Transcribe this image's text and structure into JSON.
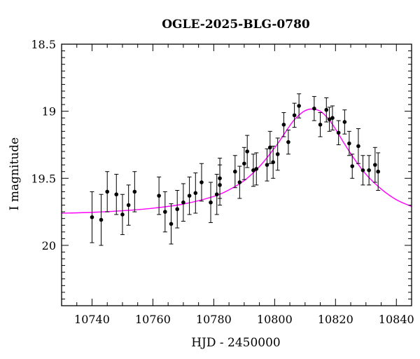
{
  "chart_data": {
    "type": "scatter",
    "title": "OGLE-2025-BLG-0780",
    "xlabel": "HJD - 2450000",
    "ylabel": "I magnitude",
    "xlim": [
      10730,
      10845
    ],
    "ylim": [
      20.45,
      18.5
    ],
    "y_inverted": true,
    "x_ticks": [
      10740,
      10760,
      10780,
      10800,
      10820,
      10840
    ],
    "x_tick_labels": [
      "10740",
      "10760",
      "10780",
      "10800",
      "10820",
      "10840"
    ],
    "y_ticks": [
      18.5,
      19,
      19.5,
      20
    ],
    "y_tick_labels": [
      "18.5",
      "19",
      "19.5",
      "20"
    ],
    "model_color": "#ff00ff",
    "point_color": "#000000",
    "model_curve": {
      "x": [
        10730,
        10740,
        10750,
        10760,
        10770,
        10780,
        10785,
        10790,
        10795,
        10800,
        10803,
        10806,
        10809,
        10811,
        10813,
        10815,
        10817,
        10819,
        10821,
        10823,
        10826,
        10830,
        10835,
        10840,
        10845
      ],
      "y": [
        19.76,
        19.754,
        19.742,
        19.723,
        19.692,
        19.635,
        19.586,
        19.517,
        19.413,
        19.273,
        19.175,
        19.076,
        19.01,
        18.987,
        18.985,
        19.0,
        19.04,
        19.098,
        19.17,
        19.245,
        19.35,
        19.47,
        19.58,
        19.66,
        19.71
      ]
    },
    "series": [
      {
        "x": [
          10740,
          10743,
          10745,
          10748,
          10750,
          10752,
          10754,
          10762,
          10764,
          10766,
          10768,
          10770,
          10772,
          10774,
          10776,
          10779,
          10781,
          10782,
          10782,
          10787,
          10788.5,
          10790,
          10791,
          10793,
          10794,
          10797.5,
          10798.5,
          10799.5,
          10801,
          10803,
          10804.5,
          10806.5,
          10808,
          10813,
          10815,
          10817,
          10818,
          10819,
          10821,
          10823,
          10824.5,
          10825.5,
          10827.5,
          10829,
          10831,
          10833,
          10834
        ],
        "y": [
          19.79,
          19.81,
          19.6,
          19.62,
          19.77,
          19.7,
          19.6,
          19.63,
          19.75,
          19.84,
          19.73,
          19.68,
          19.63,
          19.61,
          19.53,
          19.68,
          19.62,
          19.55,
          19.5,
          19.45,
          19.53,
          19.39,
          19.3,
          19.44,
          19.43,
          19.4,
          19.27,
          19.38,
          19.32,
          19.1,
          19.23,
          19.03,
          18.96,
          18.98,
          19.1,
          18.99,
          19.06,
          19.05,
          19.16,
          19.08,
          19.24,
          19.41,
          19.26,
          19.44,
          19.44,
          19.4,
          19.45
        ],
        "y_err": [
          0.19,
          0.19,
          0.15,
          0.15,
          0.15,
          0.15,
          0.15,
          0.14,
          0.15,
          0.15,
          0.14,
          0.14,
          0.14,
          0.15,
          0.14,
          0.15,
          0.15,
          0.15,
          0.15,
          0.12,
          0.12,
          0.12,
          0.12,
          0.12,
          0.12,
          0.12,
          0.12,
          0.12,
          0.12,
          0.09,
          0.09,
          0.09,
          0.09,
          0.09,
          0.09,
          0.09,
          0.09,
          0.09,
          0.09,
          0.09,
          0.09,
          0.09,
          0.13,
          0.11,
          0.11,
          0.13,
          0.14
        ]
      }
    ]
  }
}
